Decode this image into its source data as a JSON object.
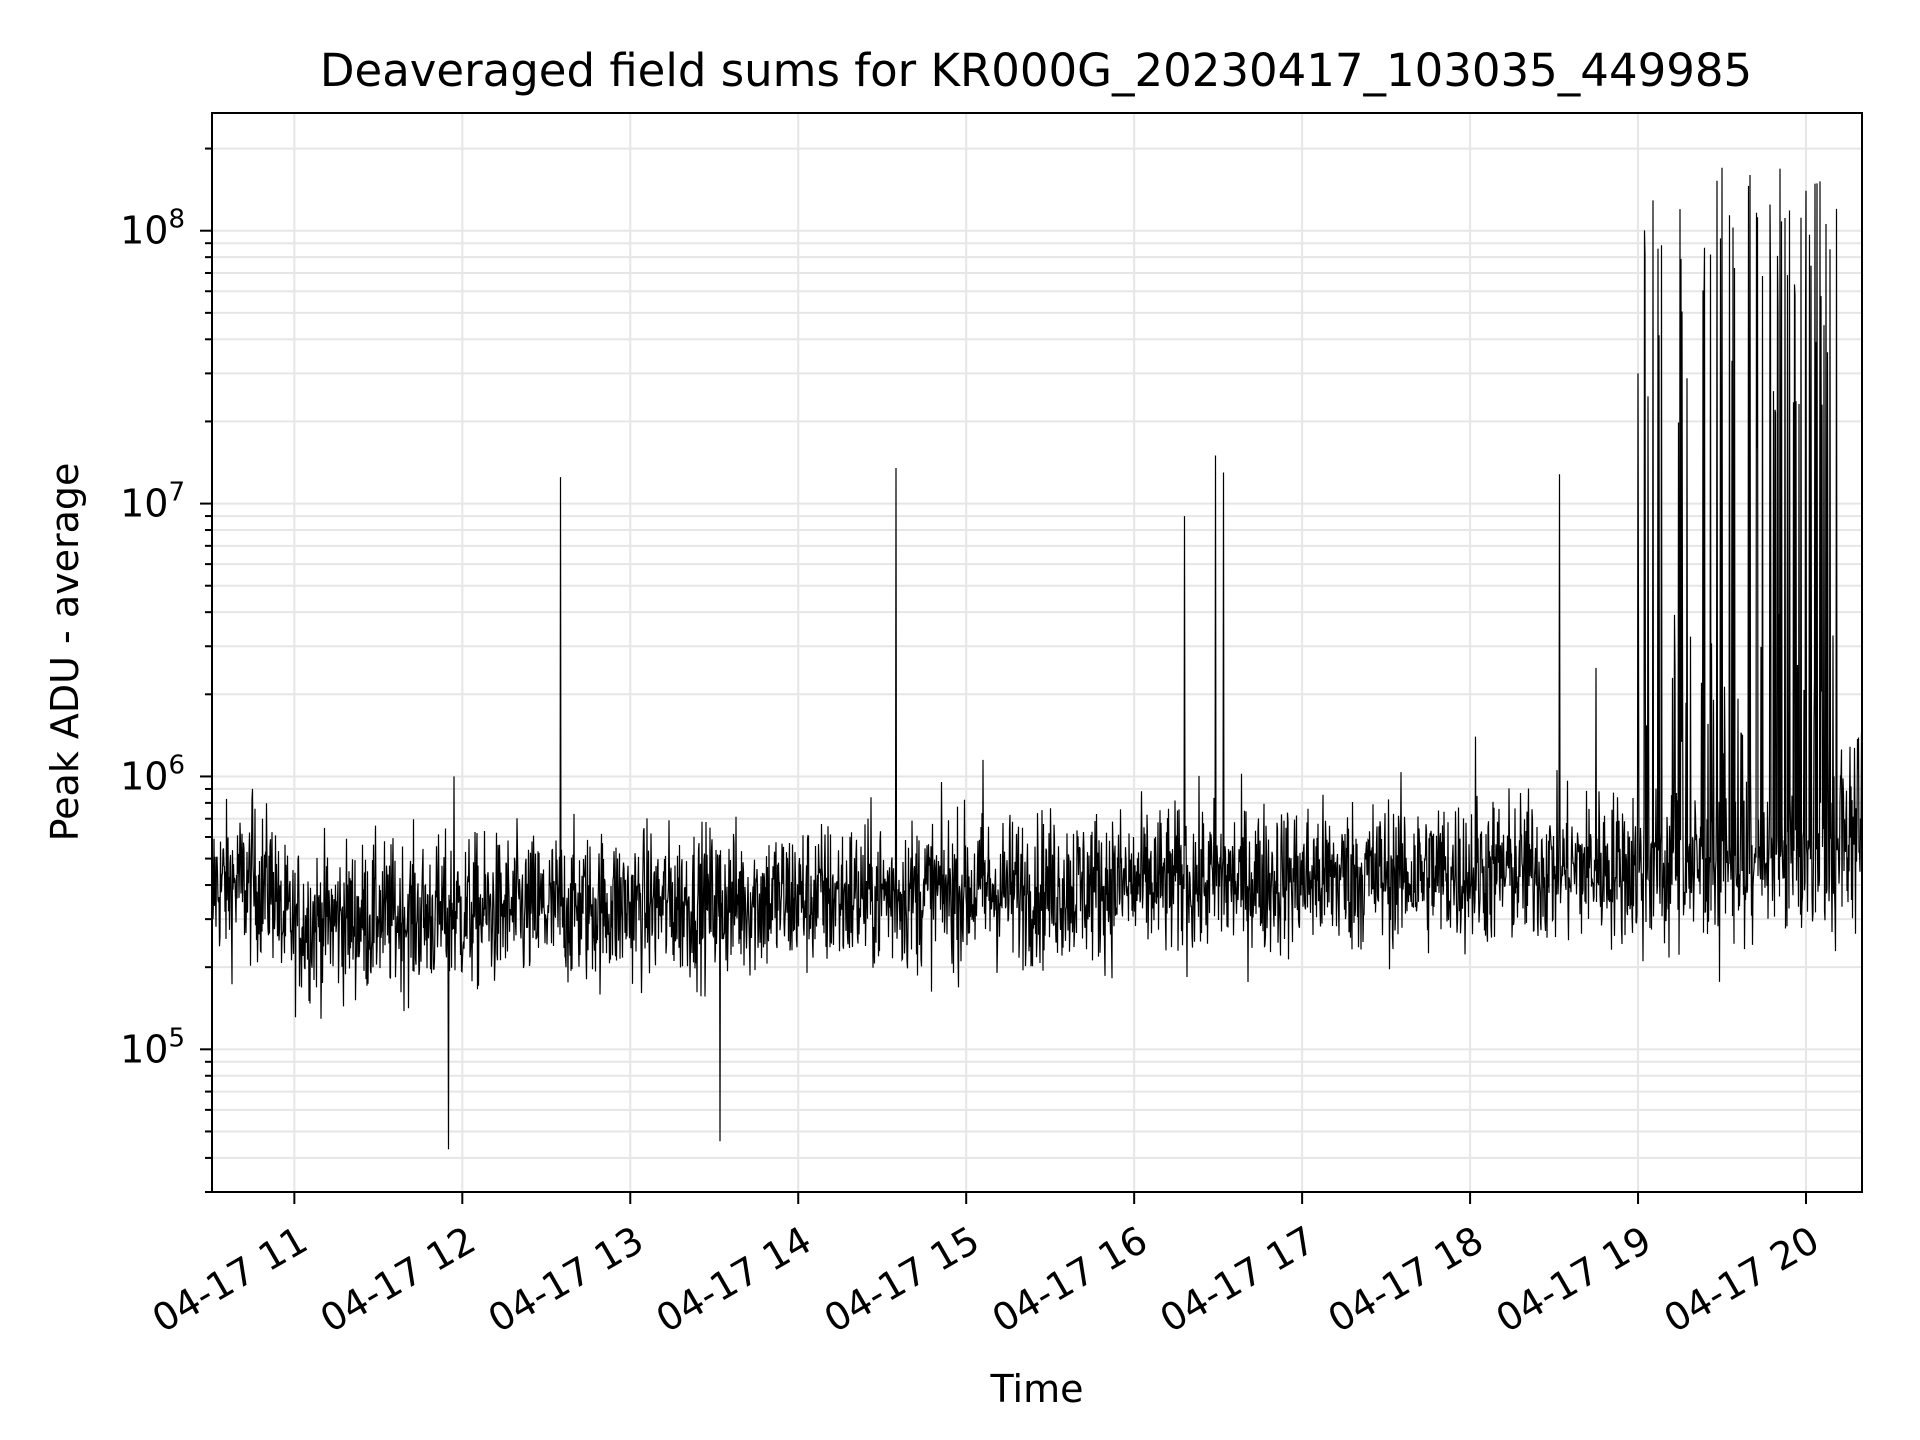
{
  "chart_data": {
    "type": "line",
    "title": "Deaveraged field sums for KR000G_20230417_103035_449985",
    "xlabel": "Time",
    "ylabel": "Peak ADU - average",
    "xscale": "time",
    "yscale": "log",
    "xlim": [
      "2023-04-17T10:30:35",
      "2023-04-17T20:20:00"
    ],
    "ylim": [
      30000,
      270000000
    ],
    "grid": true,
    "line_color": "#000000",
    "x_tick_labels": [
      "04-17 11",
      "04-17 12",
      "04-17 13",
      "04-17 14",
      "04-17 15",
      "04-17 16",
      "04-17 17",
      "04-17 18",
      "04-17 19",
      "04-17 20"
    ],
    "y_tick_labels": [
      {
        "base": "10",
        "exp": "5"
      },
      {
        "base": "10",
        "exp": "6"
      },
      {
        "base": "10",
        "exp": "7"
      },
      {
        "base": "10",
        "exp": "8"
      }
    ],
    "series": [
      {
        "values": [
          [
            "2023-04-17T10:31:00",
            300000
          ],
          [
            "2023-04-17T10:40:00",
            520000
          ],
          [
            "2023-04-17T10:45:00",
            900000
          ],
          [
            "2023-04-17T10:55:00",
            350000
          ],
          [
            "2023-04-17T11:00:00",
            300000
          ],
          [
            "2023-04-17T11:30:00",
            300000
          ],
          [
            "2023-04-17T11:55:00",
            43000
          ],
          [
            "2023-04-17T11:57:00",
            1000000
          ],
          [
            "2023-04-17T12:30:00",
            300000
          ],
          [
            "2023-04-17T12:35:00",
            12500000
          ],
          [
            "2023-04-17T13:00:00",
            320000
          ],
          [
            "2023-04-17T13:32:00",
            46000
          ],
          [
            "2023-04-17T14:00:00",
            350000
          ],
          [
            "2023-04-17T14:35:00",
            13500000
          ],
          [
            "2023-04-17T15:00:00",
            360000
          ],
          [
            "2023-04-17T15:06:00",
            1150000
          ],
          [
            "2023-04-17T15:30:00",
            360000
          ],
          [
            "2023-04-17T16:00:00",
            380000
          ],
          [
            "2023-04-17T16:18:00",
            9000000
          ],
          [
            "2023-04-17T16:29:00",
            15000000
          ],
          [
            "2023-04-17T16:32:00",
            13000000
          ],
          [
            "2023-04-17T17:00:00",
            400000
          ],
          [
            "2023-04-17T17:30:00",
            400000
          ],
          [
            "2023-04-17T18:02:00",
            1400000
          ],
          [
            "2023-04-17T18:30:00",
            420000
          ],
          [
            "2023-04-17T18:32:00",
            12800000
          ],
          [
            "2023-04-17T18:45:00",
            2500000
          ],
          [
            "2023-04-17T19:00:00",
            30000000
          ],
          [
            "2023-04-17T19:15:00",
            120000000
          ],
          [
            "2023-04-17T19:30:00",
            170000000
          ],
          [
            "2023-04-17T19:40:00",
            160000000
          ],
          [
            "2023-04-17T19:50:00",
            50000000
          ],
          [
            "2023-04-17T20:00:00",
            140000000
          ],
          [
            "2023-04-17T20:10:00",
            1000000
          ],
          [
            "2023-04-17T20:20:00",
            900000
          ]
        ]
      }
    ]
  }
}
